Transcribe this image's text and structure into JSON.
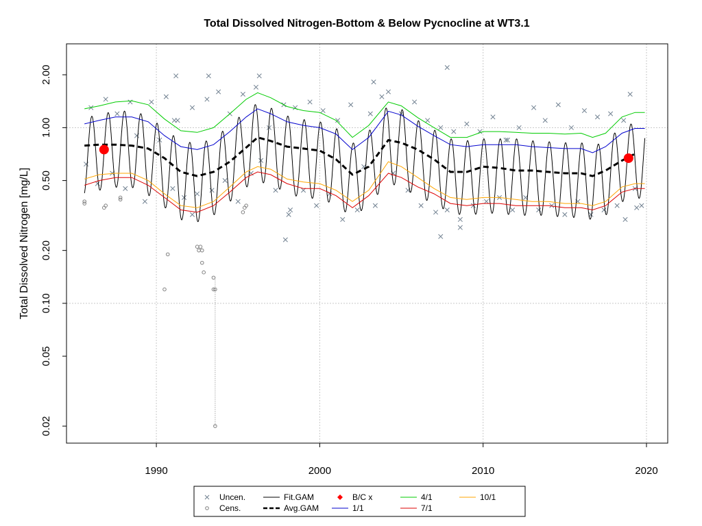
{
  "chart_data": {
    "type": "scatter",
    "title": "Total Dissolved Nitrogen-Bottom & Below Pycnocline at WT3.1",
    "xlabel": "",
    "ylabel": "Total Dissolved Nitrogen [mg/L]",
    "y_scale": "log",
    "xlim": [
      1984.5,
      2021.3
    ],
    "ylim": [
      0.016,
      3.0
    ],
    "x_ticks": [
      1990,
      2000,
      2010,
      2020
    ],
    "y_ticks": [
      0.02,
      0.05,
      0.1,
      0.2,
      0.5,
      1.0,
      2.0
    ],
    "y_tick_labels": [
      "0.02",
      "0.05",
      "0.10",
      "0.20",
      "0.50",
      "1.00",
      "2.00"
    ],
    "grid": true,
    "legend_position": "bottom",
    "legend": [
      {
        "label": "Uncen.",
        "symbol": "x",
        "color": "#708090"
      },
      {
        "label": "Cens.",
        "symbol": "circle",
        "color": "#808080"
      },
      {
        "label": "Fit.GAM",
        "symbol": "line",
        "color": "#000000"
      },
      {
        "label": "Avg.GAM",
        "symbol": "dashed",
        "color": "#000000"
      },
      {
        "label": "B/C x",
        "symbol": "diamond",
        "color": "#ff0000"
      },
      {
        "label": "1/1",
        "symbol": "line",
        "color": "#0000cd"
      },
      {
        "label": "4/1",
        "symbol": "line",
        "color": "#00cc00"
      },
      {
        "label": "7/1",
        "symbol": "line",
        "color": "#dd0000"
      },
      {
        "label": "10/1",
        "symbol": "line",
        "color": "#ffa500"
      }
    ],
    "series": [
      {
        "name": "Avg.GAM",
        "color": "#000000",
        "style": "dashed",
        "x": [
          1985.6,
          1986.5,
          1987.5,
          1988.5,
          1989.5,
          1990.5,
          1991.5,
          1992.5,
          1993.5,
          1994.5,
          1995.5,
          1996.2,
          1997.0,
          1998.0,
          1999.0,
          2000.0,
          2001.0,
          2002.0,
          2003.0,
          2004.2,
          2005.0,
          2006.0,
          2007.0,
          2008.0,
          2009.0,
          2010.0,
          2011.0,
          2012.0,
          2013.0,
          2014.0,
          2015.0,
          2016.0,
          2016.7,
          2017.5,
          2018.5,
          2019.3
        ],
        "y": [
          0.79,
          0.8,
          0.8,
          0.79,
          0.76,
          0.67,
          0.56,
          0.53,
          0.56,
          0.64,
          0.77,
          0.88,
          0.84,
          0.78,
          0.76,
          0.74,
          0.66,
          0.54,
          0.6,
          0.85,
          0.82,
          0.75,
          0.66,
          0.56,
          0.56,
          0.6,
          0.59,
          0.57,
          0.57,
          0.56,
          0.55,
          0.55,
          0.53,
          0.57,
          0.65,
          0.71
        ]
      },
      {
        "name": "1/1",
        "color": "#0000cd",
        "style": "solid",
        "x": [
          1985.6,
          1986.5,
          1987.5,
          1988.5,
          1989.5,
          1990.5,
          1991.5,
          1992.5,
          1993.5,
          1994.5,
          1995.5,
          1996.2,
          1997.0,
          1998.0,
          1999.0,
          2000.0,
          2001.0,
          2002.0,
          2003.0,
          2004.2,
          2005.0,
          2006.0,
          2007.0,
          2008.0,
          2009.0,
          2010.0,
          2011.0,
          2012.0,
          2013.0,
          2014.0,
          2015.0,
          2016.0,
          2016.7,
          2017.5,
          2018.5,
          2019.3,
          2019.9
        ],
        "y": [
          1.05,
          1.1,
          1.15,
          1.15,
          1.08,
          0.9,
          0.78,
          0.75,
          0.8,
          0.95,
          1.15,
          1.28,
          1.2,
          1.08,
          1.03,
          1.0,
          0.92,
          0.75,
          0.88,
          1.24,
          1.18,
          1.02,
          0.9,
          0.8,
          0.78,
          0.8,
          0.8,
          0.8,
          0.78,
          0.77,
          0.76,
          0.76,
          0.72,
          0.78,
          0.93,
          0.99,
          0.99
        ]
      },
      {
        "name": "4/1",
        "color": "#00cc00",
        "style": "solid",
        "x": [
          1985.6,
          1986.5,
          1987.5,
          1988.5,
          1989.5,
          1990.5,
          1991.5,
          1992.5,
          1993.5,
          1994.5,
          1995.5,
          1996.2,
          1997.0,
          1998.0,
          1999.0,
          2000.0,
          2001.0,
          2002.0,
          2003.0,
          2004.2,
          2005.0,
          2006.0,
          2007.0,
          2008.0,
          2009.0,
          2010.0,
          2011.0,
          2012.0,
          2013.0,
          2014.0,
          2015.0,
          2016.0,
          2016.7,
          2017.5,
          2018.5,
          2019.3,
          2019.9
        ],
        "y": [
          1.28,
          1.33,
          1.4,
          1.42,
          1.35,
          1.12,
          0.96,
          0.94,
          1.0,
          1.2,
          1.45,
          1.58,
          1.48,
          1.32,
          1.25,
          1.22,
          1.1,
          0.88,
          1.03,
          1.4,
          1.33,
          1.14,
          1.0,
          0.88,
          0.88,
          0.95,
          0.95,
          0.94,
          0.93,
          0.93,
          0.92,
          0.93,
          0.88,
          0.93,
          1.15,
          1.22,
          1.22
        ]
      },
      {
        "name": "7/1",
        "color": "#dd0000",
        "style": "solid",
        "x": [
          1985.6,
          1986.5,
          1987.5,
          1988.5,
          1989.5,
          1990.5,
          1991.5,
          1992.5,
          1993.5,
          1994.5,
          1995.5,
          1996.2,
          1997.0,
          1998.0,
          1999.0,
          2000.0,
          2001.0,
          2002.0,
          2003.0,
          2004.2,
          2005.0,
          2006.0,
          2007.0,
          2008.0,
          2009.0,
          2010.0,
          2011.0,
          2012.0,
          2013.0,
          2014.0,
          2015.0,
          2016.0,
          2016.7,
          2017.5,
          2018.5,
          2019.3,
          2019.9
        ],
        "y": [
          0.47,
          0.5,
          0.52,
          0.52,
          0.47,
          0.4,
          0.34,
          0.33,
          0.36,
          0.43,
          0.52,
          0.56,
          0.54,
          0.48,
          0.45,
          0.45,
          0.41,
          0.35,
          0.41,
          0.55,
          0.52,
          0.46,
          0.42,
          0.37,
          0.36,
          0.37,
          0.37,
          0.36,
          0.36,
          0.36,
          0.35,
          0.35,
          0.34,
          0.36,
          0.43,
          0.45,
          0.45
        ]
      },
      {
        "name": "10/1",
        "color": "#ffa500",
        "style": "solid",
        "x": [
          1985.6,
          1986.5,
          1987.5,
          1988.5,
          1989.5,
          1990.5,
          1991.5,
          1992.5,
          1993.5,
          1994.5,
          1995.5,
          1996.2,
          1997.0,
          1998.0,
          1999.0,
          2000.0,
          2001.0,
          2002.0,
          2003.0,
          2004.2,
          2005.0,
          2006.0,
          2007.0,
          2008.0,
          2009.0,
          2010.0,
          2011.0,
          2012.0,
          2013.0,
          2014.0,
          2015.0,
          2016.0,
          2016.7,
          2017.5,
          2018.5,
          2019.3,
          2019.9
        ],
        "y": [
          0.51,
          0.54,
          0.55,
          0.55,
          0.5,
          0.42,
          0.36,
          0.35,
          0.38,
          0.46,
          0.56,
          0.6,
          0.58,
          0.51,
          0.49,
          0.48,
          0.44,
          0.38,
          0.44,
          0.64,
          0.6,
          0.52,
          0.45,
          0.4,
          0.39,
          0.4,
          0.4,
          0.39,
          0.38,
          0.38,
          0.37,
          0.37,
          0.36,
          0.38,
          0.46,
          0.48,
          0.48
        ]
      },
      {
        "name": "Fit.GAM",
        "color": "#000000",
        "style": "solid",
        "period_years": 1,
        "x_range": [
          1985.6,
          2019.9
        ],
        "description_note": "seasonal oscillation around Avg.GAM, peaks near 1/1 curve, troughs below 7/1 curve"
      }
    ],
    "bc_points": {
      "name": "B/C x",
      "color": "#ff0000",
      "x": [
        1986.8,
        2018.9
      ],
      "y": [
        0.75,
        0.67
      ]
    },
    "censored_points": {
      "name": "Cens.",
      "color": "#808080",
      "x": [
        1985.6,
        1985.6,
        1986.8,
        1986.9,
        1987.8,
        1987.8,
        1990.5,
        1990.7,
        1992.5,
        1992.7,
        1992.6,
        1992.8,
        1992.8,
        1992.9,
        1993.5,
        1993.6,
        1993.5,
        1993.6,
        1995.3,
        1995.4,
        1995.5
      ],
      "y": [
        0.37,
        0.38,
        0.35,
        0.36,
        0.39,
        0.4,
        0.12,
        0.19,
        0.21,
        0.21,
        0.2,
        0.2,
        0.17,
        0.15,
        0.12,
        0.12,
        0.14,
        0.02,
        0.33,
        0.35,
        0.36
      ]
    },
    "uncensored_points": {
      "name": "Uncen.",
      "color": "#708090",
      "x": [
        1985.7,
        1986.0,
        1986.4,
        1986.9,
        1987.3,
        1987.6,
        1988.1,
        1988.4,
        1988.8,
        1989.3,
        1989.7,
        1990.2,
        1990.6,
        1991.0,
        1991.3,
        1991.7,
        1992.2,
        1992.5,
        1993.1,
        1993.4,
        1993.8,
        1994.2,
        1994.5,
        1995.0,
        1995.3,
        1995.8,
        1996.1,
        1996.4,
        1996.9,
        1997.3,
        1997.8,
        1998.2,
        1998.5,
        1999.0,
        1999.4,
        1999.8,
        2000.2,
        2000.6,
        2001.1,
        2001.4,
        2001.9,
        2002.3,
        2002.7,
        2003.1,
        2003.4,
        2003.8,
        2004.2,
        2004.5,
        2005.0,
        2005.4,
        2005.8,
        2006.2,
        2006.6,
        2007.1,
        2007.4,
        2007.8,
        2008.2,
        2008.6,
        2009.0,
        2009.4,
        2009.8,
        2010.2,
        2010.6,
        2011.0,
        2011.4,
        2011.8,
        2012.2,
        2012.6,
        2013.1,
        2013.4,
        2013.8,
        2014.2,
        2014.6,
        2015.0,
        2015.4,
        2015.8,
        2016.2,
        2016.6,
        2017.0,
        2017.4,
        2017.8,
        2018.2,
        2018.6,
        2019.0,
        2019.3,
        2019.7,
        1991.2,
        1993.2,
        1996.3,
        1998.1,
        2003.3,
        2007.8,
        2007.4,
        1997.9,
        1992.2,
        2008.6,
        2018.7,
        2019.4,
        1991.1,
        2011.5
      ],
      "y": [
        0.62,
        1.3,
        0.48,
        1.45,
        0.55,
        1.2,
        0.45,
        1.4,
        0.9,
        0.38,
        1.4,
        0.85,
        1.5,
        0.45,
        1.1,
        0.4,
        1.3,
        0.42,
        1.45,
        0.44,
        1.6,
        0.5,
        1.2,
        0.38,
        1.55,
        0.55,
        1.7,
        0.65,
        1.0,
        0.44,
        1.35,
        0.34,
        1.3,
        0.44,
        1.4,
        0.36,
        1.25,
        0.42,
        1.1,
        0.3,
        1.35,
        0.34,
        0.6,
        1.2,
        0.36,
        1.5,
        1.6,
        0.55,
        1.2,
        0.44,
        1.4,
        0.36,
        1.1,
        0.33,
        1.0,
        0.34,
        0.95,
        0.3,
        1.05,
        0.36,
        0.95,
        0.38,
        1.15,
        0.4,
        0.85,
        0.34,
        1.0,
        0.4,
        1.3,
        0.34,
        1.1,
        0.36,
        1.35,
        0.32,
        1.0,
        0.38,
        1.25,
        0.32,
        1.15,
        0.34,
        1.2,
        0.36,
        1.1,
        1.55,
        0.45,
        0.36,
        1.97,
        1.97,
        1.97,
        0.32,
        1.82,
        2.2,
        0.24,
        0.23,
        0.32,
        0.27,
        0.3,
        0.35,
        1.1,
        0.85
      ]
    }
  }
}
